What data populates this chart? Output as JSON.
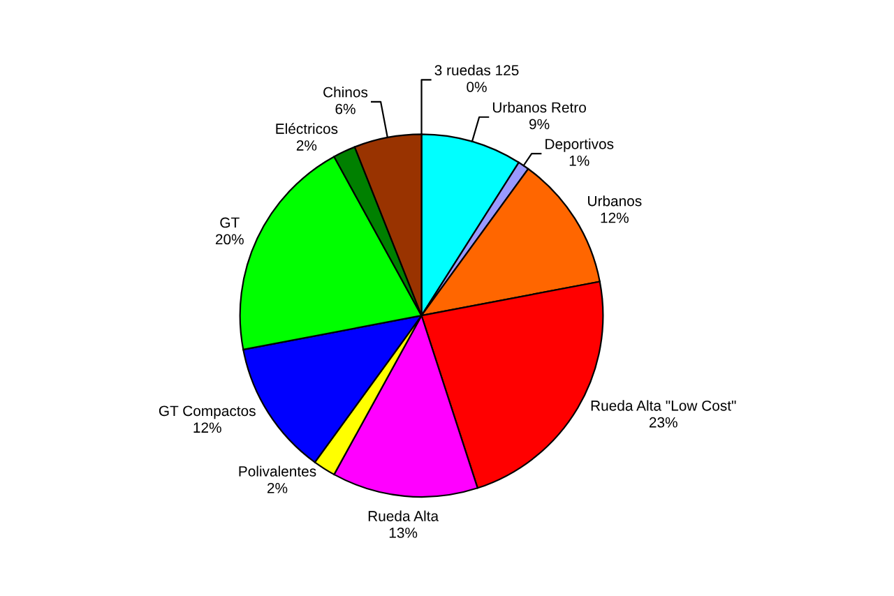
{
  "chart_data": {
    "type": "pie",
    "categories": [
      "3 ruedas 125",
      "Urbanos Retro",
      "Deportivos",
      "Urbanos",
      "Rueda Alta \"Low Cost\"",
      "Rueda Alta",
      "Polivalentes",
      "GT Compactos",
      "GT",
      "Eléctricos",
      "Chinos"
    ],
    "values": [
      0,
      9,
      1,
      12,
      23,
      13,
      2,
      12,
      20,
      2,
      6
    ],
    "value_labels": [
      "0%",
      "9%",
      "1%",
      "12%",
      "23%",
      "13%",
      "2%",
      "12%",
      "20%",
      "2%",
      "6%"
    ],
    "colors": [
      "#993366",
      "#00ffff",
      "#9999ff",
      "#ff6600",
      "#ff0000",
      "#ff00ff",
      "#ffff00",
      "#0000ff",
      "#00ff00",
      "#008000",
      "#993300"
    ]
  }
}
